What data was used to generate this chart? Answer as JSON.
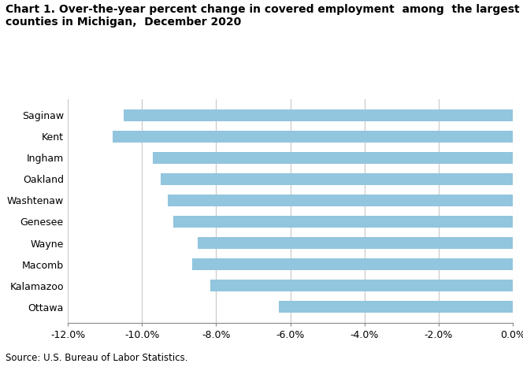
{
  "title_line1": "Chart 1. Over-the-year percent change in covered employment  among  the largest",
  "title_line2": "counties in Michigan,  December 2020",
  "categories": [
    "Ottawa",
    "Kalamazoo",
    "Macomb",
    "Wayne",
    "Genesee",
    "Washtenaw",
    "Oakland",
    "Ingham",
    "Kent",
    "Saginaw"
  ],
  "values": [
    -6.3,
    -8.15,
    -8.65,
    -8.5,
    -9.15,
    -9.3,
    -9.5,
    -9.7,
    -10.8,
    -10.5
  ],
  "bar_color": "#92c5de",
  "xlim": [
    -12.0,
    0.0
  ],
  "xticks": [
    -12,
    -10,
    -8,
    -6,
    -4,
    -2,
    0
  ],
  "source": "Source: U.S. Bureau of Labor Statistics.",
  "background_color": "#ffffff",
  "bar_height": 0.55,
  "title_fontsize": 10.0,
  "tick_fontsize": 9,
  "source_fontsize": 8.5
}
